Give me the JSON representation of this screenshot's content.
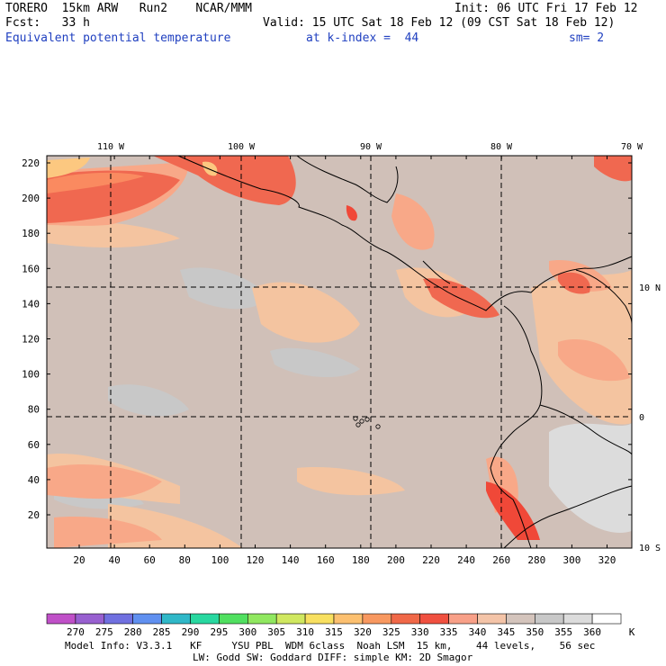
{
  "header": {
    "model": "TORERO",
    "resolution": "15km ARW",
    "run": "Run2",
    "org": "NCAR/MMM",
    "init": "Init: 06 UTC Fri 17 Feb 12",
    "fcst_label": "Fcst:",
    "fcst_value": "33 h",
    "valid": "Valid: 15 UTC Sat 18 Feb 12 (09 CST Sat 18 Feb 12)",
    "field": "Equivalent potential temperature",
    "kindex": "at k-index =  44",
    "sm": "sm= 2"
  },
  "map": {
    "lon_labels": [
      "110 W",
      "100 W",
      "90 W",
      "80 W",
      "70 W"
    ],
    "lat_labels": [
      "10 N",
      "0",
      "10 S"
    ],
    "y_ticks": [
      "20",
      "40",
      "60",
      "80",
      "100",
      "120",
      "140",
      "160",
      "180",
      "200",
      "220"
    ],
    "x_ticks": [
      "20",
      "40",
      "60",
      "80",
      "100",
      "120",
      "140",
      "160",
      "180",
      "200",
      "220",
      "240",
      "260",
      "280",
      "300",
      "320"
    ],
    "colors": {
      "base": "#d0c0b8",
      "warm_light": "#f4c4a0",
      "warm_mid": "#f8a888",
      "warm": "#f06850",
      "hot": "#f04838",
      "orange": "#fa8a60",
      "yellow": "#fcc880",
      "cool": "#c8c8c8",
      "cold": "#dcdcdc",
      "coldest": "#f0f0f0"
    }
  },
  "colorbar": {
    "levels": [
      "270",
      "275",
      "280",
      "285",
      "290",
      "295",
      "300",
      "305",
      "310",
      "315",
      "320",
      "325",
      "330",
      "335",
      "340",
      "345",
      "350",
      "355",
      "360"
    ],
    "colors": [
      "#c050c8",
      "#9860d0",
      "#7070e0",
      "#6090f0",
      "#30b8c8",
      "#28d8a0",
      "#50e060",
      "#90e860",
      "#d0e860",
      "#f8e060",
      "#fcc070",
      "#f89860",
      "#f06848",
      "#f05040",
      "#f8a088",
      "#f4c4a8",
      "#d4c4bc",
      "#c8c8c8",
      "#dcdcdc",
      "#ffffff"
    ],
    "unit": "K"
  },
  "footer": {
    "line1": "Model Info: V3.3.1   KF     YSU PBL  WDM 6class  Noah LSM  15 km,    44 levels,    56 sec",
    "line2": "LW: Godd SW: Goddard DIFF: simple KM: 2D Smagor"
  }
}
